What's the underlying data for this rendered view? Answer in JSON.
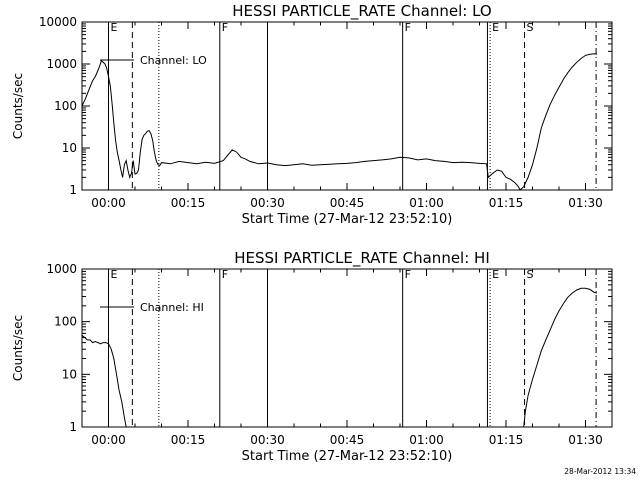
{
  "timestamp": "28-Mar-2012 13:34",
  "chart_data": [
    {
      "type": "line",
      "scale": "log-y",
      "title": "HESSI PARTICLE_RATE Channel: LO",
      "xlabel": "Start Time (27-Mar-12 23:52:10)",
      "ylabel": "Counts/sec",
      "xticks": [
        "00:00",
        "00:15",
        "00:30",
        "00:45",
        "01:00",
        "01:15",
        "01:30"
      ],
      "yticks": [
        "1",
        "10",
        "100",
        "1000",
        "10000"
      ],
      "xlim_seconds": [
        -300,
        5700
      ],
      "ylim": [
        1,
        10000
      ],
      "legend": {
        "placement": "top-left",
        "entries": [
          "Channel: LO"
        ]
      },
      "event_lines": [
        {
          "t": 0,
          "label": "E",
          "style": "solid"
        },
        {
          "t": 270,
          "label": "",
          "style": "dashed"
        },
        {
          "t": 570,
          "label": "",
          "style": "dotted"
        },
        {
          "t": 1260,
          "label": "F",
          "style": "solid"
        },
        {
          "t": 1800,
          "label": "",
          "style": "solid"
        },
        {
          "t": 3330,
          "label": "F",
          "style": "solid"
        },
        {
          "t": 4290,
          "label": "",
          "style": "solid"
        },
        {
          "t": 4320,
          "label": "E",
          "style": "dotted"
        },
        {
          "t": 4710,
          "label": "S",
          "style": "dashed"
        },
        {
          "t": 5520,
          "label": "",
          "style": "dashdot"
        }
      ],
      "series": [
        {
          "t": [
            -300,
            -260,
            -220,
            -180,
            -150,
            -120,
            -100,
            -80,
            -60,
            -40,
            -20,
            0,
            20,
            40,
            60,
            80,
            100,
            120,
            140,
            160,
            180,
            200,
            220,
            240,
            260,
            280,
            300,
            320,
            340,
            360,
            380,
            400,
            420,
            440,
            460,
            480,
            500,
            520,
            540,
            560,
            580,
            600,
            700,
            800,
            900,
            1000,
            1100,
            1200,
            1300,
            1400,
            1450,
            1500,
            1550,
            1600,
            1700,
            1800,
            1900,
            2000,
            2100,
            2200,
            2300,
            2400,
            2500,
            2600,
            2700,
            2800,
            2900,
            3000,
            3100,
            3200,
            3300,
            3400,
            3500,
            3600,
            3700,
            3800,
            3900,
            4000,
            4100,
            4200,
            4280,
            4300,
            4350,
            4400,
            4450,
            4500,
            4550,
            4600,
            4640,
            4660,
            4700,
            4750,
            4800,
            4850,
            4900,
            4950,
            5000,
            5050,
            5100,
            5150,
            5200,
            5250,
            5300,
            5350,
            5400,
            5450,
            5500,
            5530
          ],
          "values": [
            100,
            150,
            250,
            400,
            500,
            700,
            900,
            1200,
            1100,
            1000,
            800,
            500,
            300,
            120,
            40,
            15,
            8,
            5,
            3,
            2,
            4,
            5,
            3,
            2,
            2.5,
            5,
            2.4,
            2.5,
            3,
            8,
            16,
            20,
            22,
            25,
            26,
            22,
            15,
            8,
            5,
            4,
            3.8,
            4.5,
            4.2,
            4.8,
            4.5,
            4.2,
            4.6,
            4.3,
            5,
            9,
            8,
            6,
            5.5,
            4.8,
            4.2,
            4.4,
            4,
            3.8,
            4,
            4.2,
            3.9,
            4,
            4.1,
            4.2,
            4.3,
            4.5,
            4.8,
            5,
            5.2,
            5.5,
            6,
            5.8,
            5.2,
            5.5,
            5,
            4.8,
            4.5,
            4.6,
            4.5,
            4.3,
            4.2,
            2,
            2.5,
            3,
            2.8,
            2,
            1.8,
            1.5,
            1.2,
            0.9,
            1.2,
            2,
            4,
            10,
            30,
            60,
            110,
            180,
            280,
            430,
            620,
            850,
            1100,
            1350,
            1600,
            1700,
            1750,
            1700
          ]
        }
      ]
    },
    {
      "type": "line",
      "scale": "log-y",
      "title": "HESSI PARTICLE_RATE Channel: HI",
      "xlabel": "Start Time (27-Mar-12 23:52:10)",
      "ylabel": "Counts/sec",
      "xticks": [
        "00:00",
        "00:15",
        "00:30",
        "00:45",
        "01:00",
        "01:15",
        "01:30"
      ],
      "yticks": [
        "1",
        "10",
        "100",
        "1000"
      ],
      "xlim_seconds": [
        -300,
        5700
      ],
      "ylim": [
        1,
        1000
      ],
      "legend": {
        "placement": "top-left",
        "entries": [
          "Channel: HI"
        ]
      },
      "event_lines": [
        {
          "t": 0,
          "label": "E",
          "style": "solid"
        },
        {
          "t": 270,
          "label": "",
          "style": "dashed"
        },
        {
          "t": 570,
          "label": "",
          "style": "dotted"
        },
        {
          "t": 1260,
          "label": "F",
          "style": "solid"
        },
        {
          "t": 1800,
          "label": "",
          "style": "solid"
        },
        {
          "t": 3330,
          "label": "F",
          "style": "solid"
        },
        {
          "t": 4290,
          "label": "",
          "style": "solid"
        },
        {
          "t": 4320,
          "label": "E",
          "style": "dotted"
        },
        {
          "t": 4710,
          "label": "S",
          "style": "dashed"
        },
        {
          "t": 5520,
          "label": "",
          "style": "dashdot"
        }
      ],
      "series": [
        {
          "t": [
            -300,
            -270,
            -240,
            -210,
            -180,
            -150,
            -120,
            -90,
            -60,
            -30,
            0,
            30,
            60,
            90,
            120,
            150,
            180,
            200,
            4700,
            4720,
            4750,
            4800,
            4850,
            4900,
            4950,
            5000,
            5050,
            5100,
            5150,
            5200,
            5250,
            5300,
            5350,
            5400,
            5450,
            5500,
            5530
          ],
          "values": [
            55,
            50,
            45,
            45,
            40,
            42,
            40,
            38,
            40,
            40,
            38,
            30,
            20,
            10,
            5,
            3,
            1.5,
            1,
            1,
            2,
            4,
            8,
            15,
            28,
            45,
            70,
            110,
            160,
            220,
            290,
            350,
            400,
            430,
            430,
            410,
            360,
            350
          ]
        }
      ]
    }
  ]
}
